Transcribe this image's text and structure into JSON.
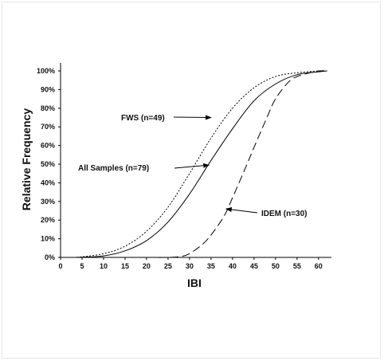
{
  "chart_data": {
    "type": "line",
    "title": "",
    "xlabel": "IBI",
    "ylabel": "Relative Frequency",
    "xlim": [
      0,
      63
    ],
    "ylim": [
      0,
      100
    ],
    "x_ticks": [
      "0",
      "5",
      "10",
      "15",
      "20",
      "25",
      "30",
      "35",
      "40",
      "45",
      "50",
      "55",
      "60"
    ],
    "y_ticks": [
      "0%",
      "10%",
      "20%",
      "30%",
      "40%",
      "50%",
      "60%",
      "70%",
      "80%",
      "90%",
      "100%"
    ],
    "grid": false,
    "legend": "none",
    "series": [
      {
        "name": "FWS (n=49)",
        "line_style": "dotted",
        "color": "#000000",
        "x": [
          3,
          5,
          10,
          15,
          20,
          25,
          30,
          35,
          40,
          45,
          50,
          55,
          60,
          62
        ],
        "y": [
          0,
          0.3,
          2,
          6,
          14,
          27,
          45,
          64,
          80,
          91,
          97,
          99,
          100,
          100
        ]
      },
      {
        "name": "All Samples (n=79)",
        "line_style": "solid",
        "color": "#000000",
        "x": [
          3,
          5,
          10,
          15,
          20,
          25,
          30,
          35,
          40,
          45,
          50,
          55,
          60,
          62
        ],
        "y": [
          0,
          0.1,
          0.8,
          3.5,
          9,
          19,
          34,
          52,
          69,
          84,
          93,
          98,
          99.5,
          100
        ]
      },
      {
        "name": "IDEM (n=30)",
        "line_style": "dashed",
        "color": "#000000",
        "x": [
          20,
          25,
          28,
          30,
          33,
          35,
          38,
          40,
          43,
          45,
          48,
          50,
          53,
          55,
          58,
          60,
          62
        ],
        "y": [
          0,
          0,
          0.5,
          2,
          7,
          12,
          22,
          32,
          48,
          59,
          75,
          85,
          94,
          97,
          99,
          100,
          100
        ]
      }
    ],
    "annotations": [
      {
        "text": "FWS (n=49)",
        "arrow_to_series": 0,
        "arrow_target": [
          35,
          75
        ]
      },
      {
        "text": "All Samples (n=79)",
        "arrow_to_series": 1,
        "arrow_target": [
          34.5,
          49.5
        ]
      },
      {
        "text": "IDEM (n=30)",
        "arrow_to_series": 2,
        "arrow_target": [
          38.5,
          26
        ]
      }
    ]
  }
}
